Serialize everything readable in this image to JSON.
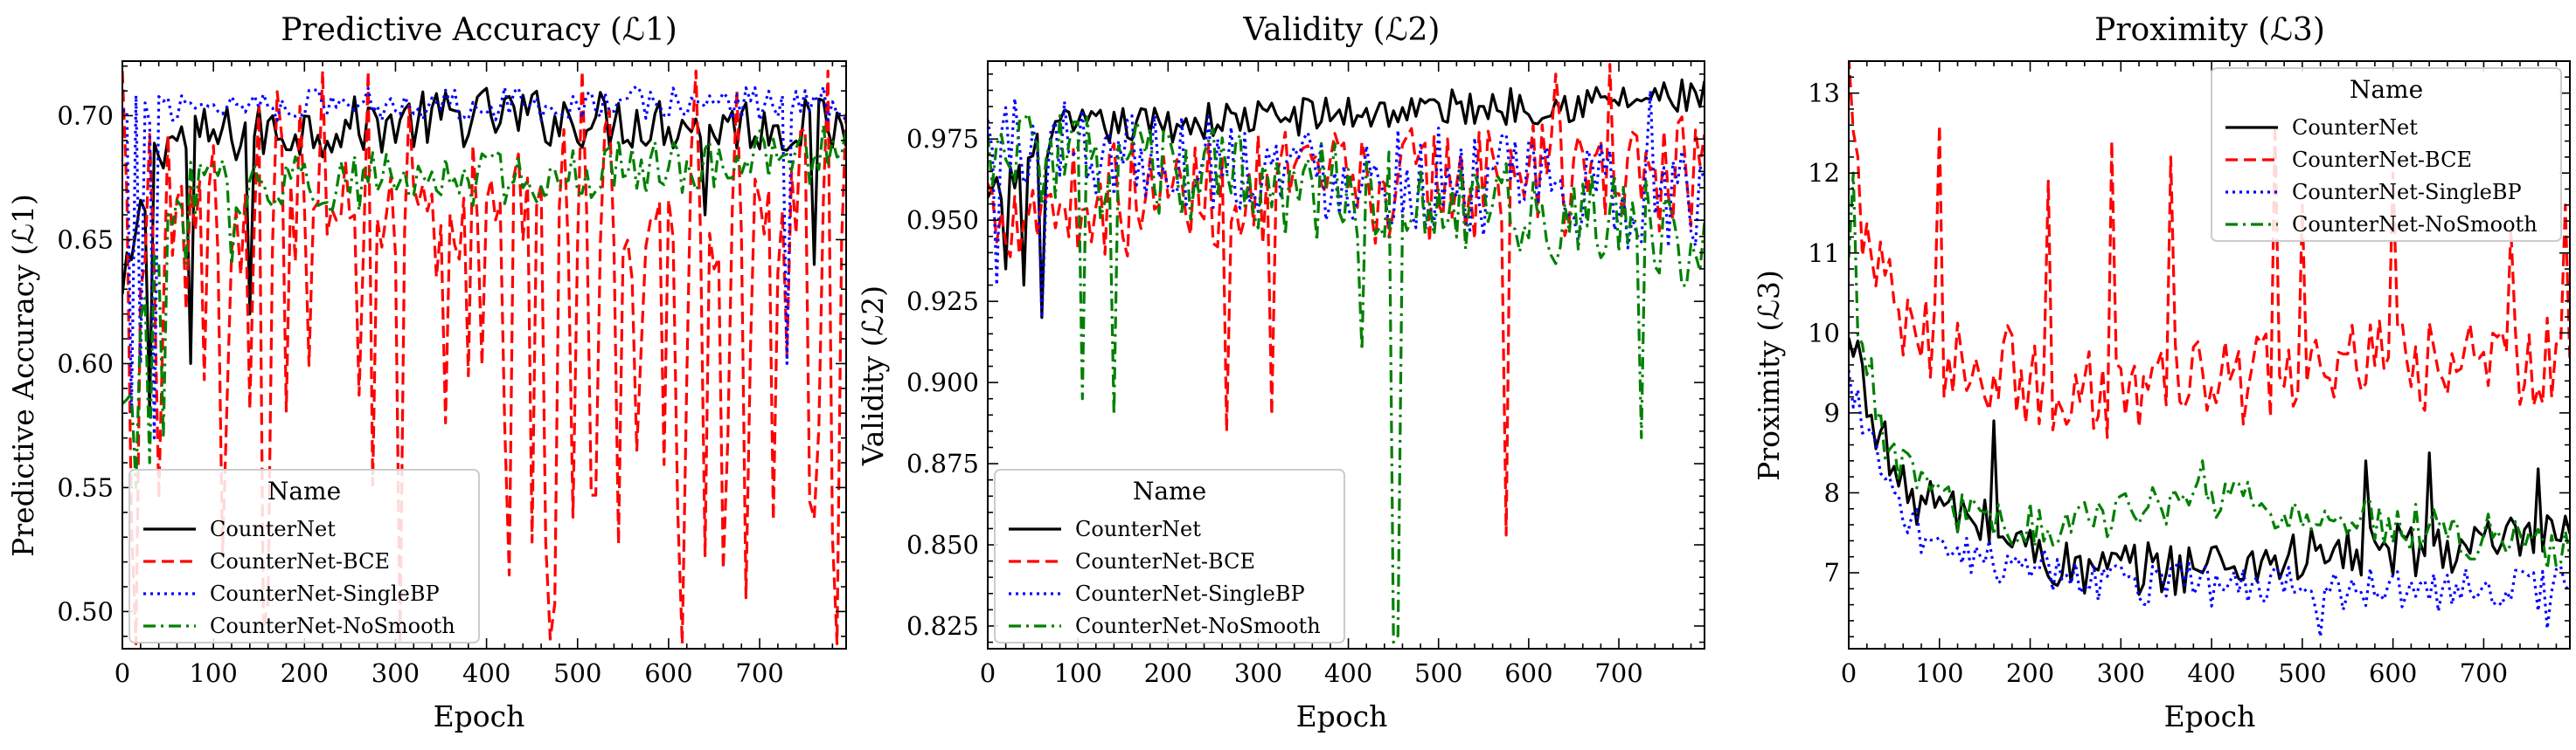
{
  "chart_data": [
    {
      "type": "line",
      "title": "Predictive Accuracy (ℒ1)",
      "xlabel": "Epoch",
      "ylabel": "Predictive Accuracy (ℒ1)",
      "xlim": [
        0,
        795
      ],
      "ylim": [
        0.485,
        0.722
      ],
      "xticks": [
        0,
        100,
        200,
        300,
        400,
        500,
        600,
        700
      ],
      "yticks": [
        0.5,
        0.55,
        0.6,
        0.65,
        0.7
      ],
      "ytick_labels": [
        "0.50",
        "0.55",
        "0.60",
        "0.65",
        "0.70"
      ],
      "grid": false,
      "legend": {
        "title": "Name",
        "placement": "lower-left"
      },
      "series": [
        {
          "name": "CounterNet",
          "color": "#000000",
          "dash": "solid",
          "profile": [
            [
              0,
              0.625
            ],
            [
              40,
              0.69
            ],
            [
              400,
              0.7
            ],
            [
              795,
              0.695
            ]
          ],
          "noise": 0.012,
          "spikes": [
            [
              30,
              0.58
            ],
            [
              75,
              0.6
            ],
            [
              140,
              0.62
            ],
            [
              640,
              0.66
            ],
            [
              760,
              0.64
            ]
          ]
        },
        {
          "name": "CounterNet-BCE",
          "color": "#ff0000",
          "dash": "dashed",
          "profile": [
            [
              0,
              0.6
            ],
            [
              60,
              0.66
            ],
            [
              795,
              0.66
            ]
          ],
          "noise": 0.012,
          "oscillate": {
            "amp": 0.11,
            "period": 24,
            "center": 0.61,
            "lo_clip": 0.487,
            "hi_clip": 0.718
          }
        },
        {
          "name": "CounterNet-SingleBP",
          "color": "#0000ff",
          "dash": "dotted",
          "profile": [
            [
              0,
              0.7
            ],
            [
              50,
              0.705
            ],
            [
              795,
              0.705
            ]
          ],
          "noise": 0.007,
          "spikes": [
            [
              8,
              0.58
            ],
            [
              20,
              0.6
            ],
            [
              35,
              0.57
            ],
            [
              730,
              0.6
            ]
          ]
        },
        {
          "name": "CounterNet-NoSmooth",
          "color": "#008000",
          "dash": "dashdot",
          "profile": [
            [
              0,
              0.58
            ],
            [
              60,
              0.67
            ],
            [
              400,
              0.675
            ],
            [
              795,
              0.685
            ]
          ],
          "noise": 0.012,
          "spikes": [
            [
              15,
              0.55
            ],
            [
              30,
              0.56
            ],
            [
              45,
              0.57
            ],
            [
              70,
              0.64
            ],
            [
              120,
              0.64
            ]
          ]
        }
      ]
    },
    {
      "type": "line",
      "title": "Validity (ℒ2)",
      "xlabel": "Epoch",
      "ylabel": "Validity (ℒ2)",
      "xlim": [
        0,
        795
      ],
      "ylim": [
        0.818,
        0.999
      ],
      "xticks": [
        0,
        100,
        200,
        300,
        400,
        500,
        600,
        700
      ],
      "yticks": [
        0.825,
        0.85,
        0.875,
        0.9,
        0.925,
        0.95,
        0.975
      ],
      "ytick_labels": [
        "0.825",
        "0.850",
        "0.875",
        "0.900",
        "0.925",
        "0.950",
        "0.975"
      ],
      "grid": false,
      "legend": {
        "title": "Name",
        "placement": "lower-left"
      },
      "series": [
        {
          "name": "CounterNet",
          "color": "#000000",
          "dash": "solid",
          "profile": [
            [
              0,
              0.955
            ],
            [
              80,
              0.978
            ],
            [
              400,
              0.983
            ],
            [
              795,
              0.988
            ]
          ],
          "noise": 0.006,
          "spikes": [
            [
              20,
              0.935
            ],
            [
              40,
              0.93
            ],
            [
              60,
              0.92
            ]
          ]
        },
        {
          "name": "CounterNet-BCE",
          "color": "#ff0000",
          "dash": "dashed",
          "profile": [
            [
              0,
              0.955
            ],
            [
              795,
              0.965
            ]
          ],
          "noise": 0.018,
          "spikes": [
            [
              265,
              0.885
            ],
            [
              315,
              0.89
            ],
            [
              575,
              0.853
            ],
            [
              630,
              0.995
            ],
            [
              690,
              0.998
            ]
          ]
        },
        {
          "name": "CounterNet-SingleBP",
          "color": "#0000ff",
          "dash": "dotted",
          "profile": [
            [
              0,
              0.975
            ],
            [
              795,
              0.955
            ]
          ],
          "noise": 0.016,
          "spikes": [
            [
              10,
              0.93
            ],
            [
              60,
              0.92
            ],
            [
              735,
              0.99
            ]
          ]
        },
        {
          "name": "CounterNet-NoSmooth",
          "color": "#008000",
          "dash": "dashdot",
          "profile": [
            [
              0,
              0.97
            ],
            [
              795,
              0.945
            ]
          ],
          "noise": 0.016,
          "spikes": [
            [
              105,
              0.895
            ],
            [
              140,
              0.89
            ],
            [
              415,
              0.91
            ],
            [
              450,
              0.82
            ],
            [
              455,
              0.822
            ],
            [
              725,
              0.883
            ]
          ]
        }
      ]
    },
    {
      "type": "line",
      "title": "Proximity (ℒ3)",
      "xlabel": "Epoch",
      "ylabel": "Proximity (ℒ3)",
      "xlim": [
        0,
        795
      ],
      "ylim": [
        6.05,
        13.4
      ],
      "xticks": [
        0,
        100,
        200,
        300,
        400,
        500,
        600,
        700
      ],
      "yticks": [
        7,
        8,
        9,
        10,
        11,
        12,
        13
      ],
      "ytick_labels": [
        "7",
        "8",
        "9",
        "10",
        "11",
        "12",
        "13"
      ],
      "grid": false,
      "legend": {
        "title": "Name",
        "placement": "upper-right"
      },
      "series": [
        {
          "name": "CounterNet",
          "color": "#000000",
          "dash": "solid",
          "profile": [
            [
              0,
              9.8
            ],
            [
              60,
              8.0
            ],
            [
              150,
              7.6
            ],
            [
              250,
              7.0
            ],
            [
              400,
              7.1
            ],
            [
              500,
              7.2
            ],
            [
              795,
              7.4
            ]
          ],
          "noise": 0.35,
          "spikes": [
            [
              10,
              9.9
            ],
            [
              160,
              8.9
            ],
            [
              570,
              8.4
            ],
            [
              640,
              8.5
            ],
            [
              760,
              8.3
            ]
          ]
        },
        {
          "name": "CounterNet-BCE",
          "color": "#ff0000",
          "dash": "dashed",
          "profile": [
            [
              0,
              13.2
            ],
            [
              20,
              11.0
            ],
            [
              60,
              10.0
            ],
            [
              150,
              9.6
            ],
            [
              250,
              9.2
            ],
            [
              400,
              9.4
            ],
            [
              600,
              9.6
            ],
            [
              795,
              9.6
            ]
          ],
          "noise": 0.6,
          "spikes": [
            [
              100,
              12.6
            ],
            [
              220,
              11.9
            ],
            [
              290,
              12.4
            ],
            [
              355,
              12.2
            ],
            [
              470,
              12.6
            ],
            [
              500,
              11.6
            ],
            [
              600,
              12.0
            ],
            [
              730,
              11.3
            ],
            [
              790,
              11.6
            ]
          ]
        },
        {
          "name": "CounterNet-SingleBP",
          "color": "#0000ff",
          "dash": "dotted",
          "profile": [
            [
              0,
              9.4
            ],
            [
              60,
              7.6
            ],
            [
              150,
              7.2
            ],
            [
              300,
              6.9
            ],
            [
              500,
              6.8
            ],
            [
              795,
              6.8
            ]
          ],
          "noise": 0.3,
          "spikes": [
            [
              520,
              6.2
            ],
            [
              770,
              6.3
            ]
          ]
        },
        {
          "name": "CounterNet-NoSmooth",
          "color": "#008000",
          "dash": "dashdot",
          "profile": [
            [
              0,
              10.8
            ],
            [
              40,
              8.6
            ],
            [
              100,
              7.8
            ],
            [
              200,
              7.6
            ],
            [
              400,
              7.9
            ],
            [
              600,
              7.6
            ],
            [
              795,
              7.3
            ]
          ],
          "noise": 0.3,
          "spikes": [
            [
              5,
              12.0
            ],
            [
              390,
              8.4
            ]
          ]
        }
      ]
    }
  ]
}
